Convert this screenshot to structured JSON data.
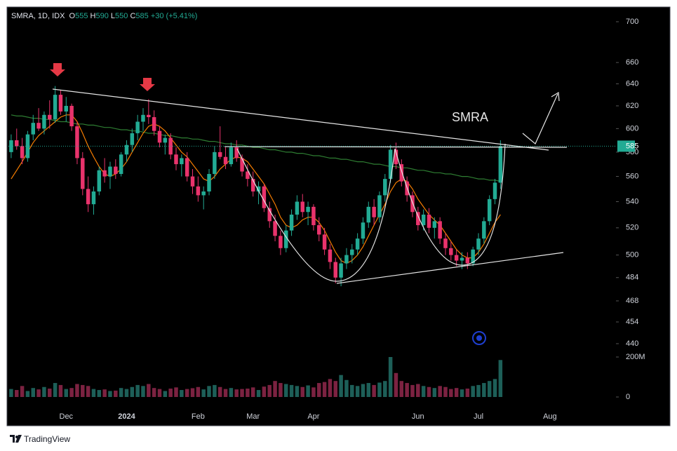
{
  "chart_data": {
    "type": "candlestick",
    "title": "SMRA, 1D, IDX",
    "legend_labels": [
      "O",
      "H",
      "L",
      "C"
    ],
    "change": "+30 (+5.41%)",
    "annotation": "SMRA",
    "log_scale": true,
    "up_color": "#22ab94",
    "down_color": "#e9336c",
    "ylim": [
      436,
      715
    ],
    "yticks": [
      440,
      454,
      468,
      484,
      500,
      520,
      540,
      560,
      580,
      600,
      620,
      640,
      660,
      700
    ],
    "categories": [
      null,
      null,
      null,
      null,
      null,
      null,
      null,
      null,
      null,
      null,
      "Dec",
      null,
      null,
      null,
      null,
      null,
      null,
      null,
      null,
      null,
      null,
      "2024",
      null,
      null,
      null,
      null,
      null,
      null,
      null,
      null,
      null,
      null,
      null,
      null,
      "Feb",
      null,
      null,
      null,
      null,
      null,
      null,
      null,
      null,
      null,
      "Mar",
      null,
      null,
      null,
      null,
      null,
      null,
      null,
      null,
      null,
      null,
      "Apr",
      null,
      null,
      null,
      null,
      null,
      null,
      null,
      null,
      null,
      null,
      null,
      null,
      null,
      null,
      null,
      null,
      null,
      null,
      "Jun",
      null,
      null,
      null,
      null,
      null,
      null,
      null,
      null,
      null,
      null,
      "Jul",
      null,
      null,
      null,
      null,
      null,
      null,
      null,
      null,
      null,
      null,
      null,
      null,
      "Aug",
      null,
      null,
      null,
      null,
      null,
      null,
      null,
      null,
      null,
      null,
      null
    ],
    "ohlc": [
      [
        580,
        595,
        575,
        590
      ],
      [
        590,
        600,
        582,
        585
      ],
      [
        585,
        592,
        570,
        575
      ],
      [
        575,
        598,
        572,
        595
      ],
      [
        595,
        612,
        590,
        605
      ],
      [
        605,
        618,
        598,
        600
      ],
      [
        600,
        615,
        595,
        612
      ],
      [
        612,
        625,
        600,
        608
      ],
      [
        608,
        638,
        605,
        630
      ],
      [
        630,
        634,
        612,
        615
      ],
      [
        615,
        628,
        606,
        620
      ],
      [
        620,
        622,
        598,
        602
      ],
      [
        602,
        606,
        570,
        575
      ],
      [
        575,
        580,
        545,
        550
      ],
      [
        550,
        560,
        532,
        538
      ],
      [
        538,
        552,
        530,
        548
      ],
      [
        548,
        568,
        545,
        565
      ],
      [
        565,
        575,
        555,
        560
      ],
      [
        560,
        572,
        550,
        568
      ],
      [
        568,
        574,
        558,
        562
      ],
      [
        562,
        580,
        560,
        578
      ],
      [
        578,
        590,
        572,
        586
      ],
      [
        586,
        600,
        580,
        596
      ],
      [
        596,
        612,
        590,
        606
      ],
      [
        606,
        618,
        598,
        612
      ],
      [
        612,
        626,
        604,
        610
      ],
      [
        610,
        616,
        594,
        598
      ],
      [
        598,
        602,
        584,
        588
      ],
      [
        588,
        595,
        578,
        592
      ],
      [
        592,
        596,
        574,
        578
      ],
      [
        578,
        584,
        565,
        570
      ],
      [
        570,
        578,
        560,
        575
      ],
      [
        575,
        580,
        556,
        560
      ],
      [
        560,
        566,
        546,
        552
      ],
      [
        552,
        560,
        540,
        545
      ],
      [
        545,
        552,
        534,
        548
      ],
      [
        548,
        566,
        545,
        562
      ],
      [
        562,
        585,
        558,
        580
      ],
      [
        580,
        602,
        574,
        576
      ],
      [
        576,
        584,
        566,
        570
      ],
      [
        570,
        588,
        568,
        584
      ],
      [
        584,
        590,
        572,
        575
      ],
      [
        575,
        578,
        560,
        564
      ],
      [
        564,
        570,
        552,
        558
      ],
      [
        558,
        564,
        544,
        548
      ],
      [
        548,
        556,
        538,
        552
      ],
      [
        552,
        554,
        532,
        535
      ],
      [
        535,
        540,
        520,
        525
      ],
      [
        525,
        530,
        510,
        514
      ],
      [
        514,
        518,
        500,
        505
      ],
      [
        505,
        522,
        502,
        518
      ],
      [
        518,
        534,
        514,
        530
      ],
      [
        530,
        545,
        526,
        540
      ],
      [
        540,
        546,
        528,
        532
      ],
      [
        532,
        540,
        522,
        536
      ],
      [
        536,
        538,
        518,
        522
      ],
      [
        522,
        528,
        510,
        515
      ],
      [
        515,
        520,
        500,
        504
      ],
      [
        504,
        508,
        490,
        495
      ],
      [
        495,
        498,
        480,
        484
      ],
      [
        484,
        498,
        478,
        494
      ],
      [
        494,
        505,
        490,
        500
      ],
      [
        500,
        508,
        494,
        504
      ],
      [
        504,
        516,
        500,
        512
      ],
      [
        512,
        528,
        508,
        524
      ],
      [
        524,
        540,
        520,
        536
      ],
      [
        536,
        542,
        522,
        528
      ],
      [
        528,
        548,
        524,
        545
      ],
      [
        545,
        562,
        540,
        558
      ],
      [
        558,
        586,
        555,
        582
      ],
      [
        582,
        588,
        566,
        570
      ],
      [
        570,
        574,
        552,
        556
      ],
      [
        556,
        560,
        540,
        545
      ],
      [
        545,
        548,
        528,
        532
      ],
      [
        532,
        536,
        518,
        522
      ],
      [
        522,
        534,
        518,
        530
      ],
      [
        530,
        535,
        516,
        520
      ],
      [
        520,
        528,
        512,
        525
      ],
      [
        525,
        528,
        508,
        512
      ],
      [
        512,
        516,
        500,
        505
      ],
      [
        505,
        510,
        496,
        500
      ],
      [
        500,
        504,
        492,
        496
      ],
      [
        496,
        502,
        490,
        498
      ],
      [
        498,
        502,
        490,
        494
      ],
      [
        494,
        506,
        492,
        504
      ],
      [
        504,
        516,
        500,
        512
      ],
      [
        512,
        528,
        508,
        525
      ],
      [
        525,
        545,
        522,
        542
      ],
      [
        542,
        558,
        538,
        555
      ],
      [
        555,
        590,
        550,
        585
      ],
      null,
      null,
      null,
      null,
      null,
      null,
      null,
      null,
      null,
      null,
      null,
      null,
      null,
      null,
      null,
      null,
      null,
      null,
      null,
      null
    ],
    "lines": [
      {
        "color": "#2e7d32",
        "values": [
          612,
          611,
          611,
          610,
          609,
          609,
          608,
          608,
          607,
          606,
          606,
          605,
          604,
          604,
          603,
          603,
          602,
          601,
          601,
          600,
          599,
          599,
          598,
          598,
          597,
          596,
          596,
          595,
          594,
          594,
          593,
          592,
          592,
          591,
          591,
          590,
          589,
          589,
          588,
          587,
          587,
          586,
          586,
          585,
          584,
          584,
          583,
          582,
          582,
          581,
          580,
          580,
          579,
          579,
          578,
          577,
          577,
          576,
          575,
          575,
          574,
          574,
          573,
          572,
          572,
          571,
          570,
          570,
          569,
          568,
          568,
          567,
          567,
          566,
          565,
          565,
          564,
          563,
          563,
          562,
          562,
          561,
          560,
          560,
          559,
          558,
          558,
          557,
          557,
          556,
          null,
          null,
          null,
          null,
          null,
          null,
          null,
          null,
          null,
          null,
          null,
          null,
          null,
          null,
          null,
          null,
          null,
          null,
          null,
          null
        ]
      },
      {
        "color": "#f57c00",
        "values": [
          558,
          565,
          572,
          580,
          588,
          594,
          598,
          602,
          606,
          610,
          612,
          612,
          606,
          596,
          585,
          576,
          568,
          562,
          560,
          562,
          566,
          572,
          580,
          588,
          596,
          602,
          604,
          602,
          598,
          592,
          586,
          580,
          576,
          570,
          564,
          558,
          556,
          560,
          566,
          570,
          574,
          576,
          575,
          572,
          566,
          560,
          554,
          546,
          538,
          528,
          522,
          520,
          522,
          526,
          528,
          528,
          524,
          518,
          510,
          502,
          496,
          494,
          496,
          500,
          506,
          514,
          522,
          530,
          538,
          548,
          555,
          558,
          556,
          550,
          542,
          536,
          530,
          526,
          522,
          516,
          510,
          504,
          500,
          498,
          498,
          502,
          508,
          516,
          524,
          530,
          null,
          null,
          null,
          null,
          null,
          null,
          null,
          null,
          null,
          null,
          null,
          null,
          null,
          null,
          null,
          null,
          null,
          null,
          null,
          null
        ]
      }
    ],
    "volume": {
      "up_color": "#1d5f58",
      "down_color": "#7c2241",
      "ylim": [
        0,
        200000000
      ],
      "yticks": [
        0,
        {
          "value": 200000000,
          "label": "200M"
        }
      ],
      "values": [
        40000000,
        35000000,
        55000000,
        30000000,
        45000000,
        38000000,
        50000000,
        42000000,
        70000000,
        60000000,
        40000000,
        45000000,
        65000000,
        60000000,
        55000000,
        40000000,
        35000000,
        38000000,
        30000000,
        32000000,
        45000000,
        40000000,
        50000000,
        60000000,
        55000000,
        65000000,
        45000000,
        40000000,
        30000000,
        42000000,
        48000000,
        35000000,
        40000000,
        44000000,
        50000000,
        38000000,
        55000000,
        60000000,
        50000000,
        40000000,
        45000000,
        38000000,
        40000000,
        42000000,
        48000000,
        35000000,
        52000000,
        60000000,
        80000000,
        70000000,
        65000000,
        60000000,
        55000000,
        50000000,
        58000000,
        48000000,
        70000000,
        75000000,
        90000000,
        80000000,
        110000000,
        85000000,
        60000000,
        55000000,
        65000000,
        70000000,
        60000000,
        72000000,
        80000000,
        200000000,
        120000000,
        80000000,
        70000000,
        60000000,
        65000000,
        55000000,
        50000000,
        45000000,
        55000000,
        50000000,
        40000000,
        45000000,
        38000000,
        42000000,
        55000000,
        60000000,
        70000000,
        80000000,
        90000000,
        185000000,
        null,
        null,
        null,
        null,
        null,
        null,
        null,
        null,
        null,
        null,
        null,
        null,
        null,
        null,
        null,
        null,
        null,
        null,
        null,
        null
      ]
    }
  },
  "brand": "TradingView"
}
